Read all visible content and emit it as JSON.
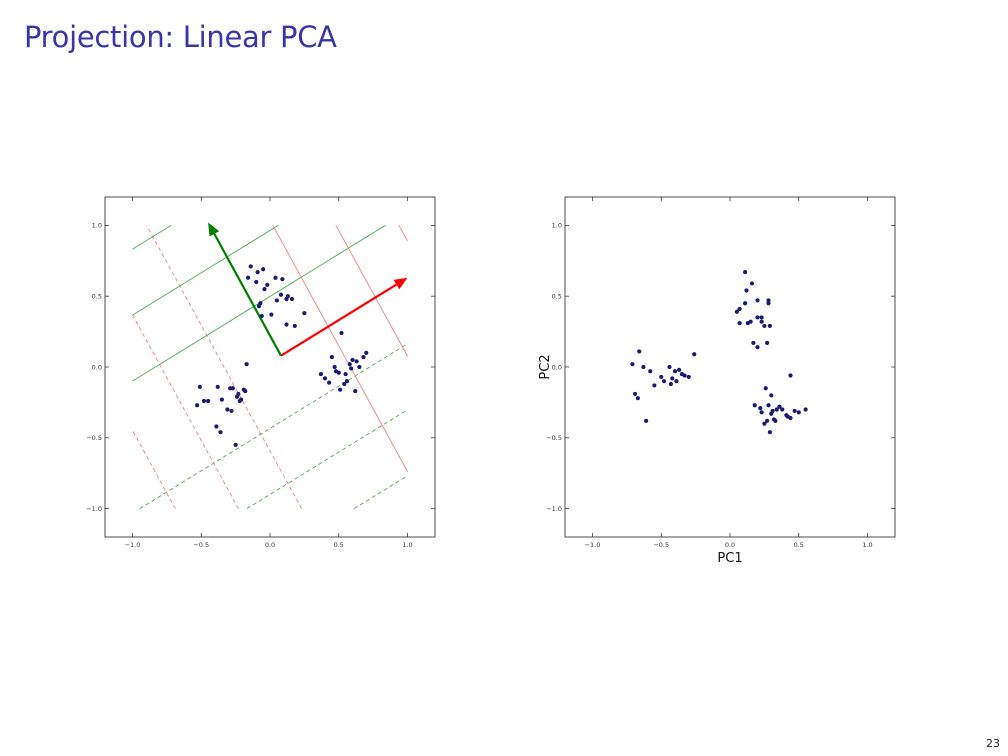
{
  "slide": {
    "title": "Projection: Linear PCA",
    "page_number": "23"
  },
  "chart_data": [
    {
      "type": "scatter",
      "title": "",
      "xlabel": "",
      "ylabel": "",
      "xlim": [
        -1.2,
        1.2
      ],
      "ylim": [
        -1.2,
        1.2
      ],
      "xticks": [
        -1.0,
        -0.5,
        0.0,
        0.5,
        1.0
      ],
      "yticks": [
        -1.0,
        -0.5,
        0.0,
        0.5,
        1.0
      ],
      "xtick_labels": [
        "−1.0",
        "−0.5",
        "0.0",
        "0.5",
        "1.0"
      ],
      "ytick_labels": [
        "−1.0",
        "−0.5",
        "0.0",
        "0.5",
        "1.0"
      ],
      "grid": false,
      "point_color": "#1a1a70",
      "series": [
        {
          "x": [
            -0.05,
            -0.1,
            -0.02,
            -0.07,
            0.04,
            0.09,
            0.12,
            -0.06,
            0.05,
            0.16,
            -0.14,
            -0.08,
            0.12,
            0.08,
            -0.04,
            0.01,
            0.18,
            0.25,
            0.13,
            -0.16,
            -0.09,
            -0.45,
            -0.35,
            -0.27,
            -0.24,
            -0.19,
            -0.31,
            -0.22,
            -0.18,
            -0.39,
            -0.53,
            -0.48,
            -0.28,
            -0.36,
            -0.21,
            -0.25,
            -0.38,
            -0.17,
            -0.51,
            -0.23,
            -0.29,
            0.4,
            0.55,
            0.48,
            0.62,
            0.52,
            0.43,
            0.68,
            0.58,
            0.51,
            0.6,
            0.56,
            0.5,
            0.45,
            0.65,
            0.37,
            0.7,
            0.59,
            0.47,
            0.54,
            0.63
          ],
          "y": [
            0.69,
            0.6,
            0.58,
            0.45,
            0.63,
            0.62,
            0.48,
            0.36,
            0.47,
            0.48,
            0.71,
            0.43,
            0.3,
            0.51,
            0.55,
            0.37,
            0.29,
            0.38,
            0.5,
            0.63,
            0.67,
            -0.24,
            -0.23,
            -0.15,
            -0.21,
            -0.16,
            -0.3,
            -0.24,
            -0.17,
            -0.42,
            -0.27,
            -0.24,
            -0.31,
            -0.46,
            -0.23,
            -0.55,
            -0.14,
            0.02,
            -0.14,
            -0.19,
            -0.15,
            -0.08,
            -0.05,
            -0.03,
            -0.17,
            0.24,
            -0.11,
            0.07,
            0.02,
            -0.16,
            0.05,
            -0.1,
            -0.04,
            0.07,
            0.0,
            -0.05,
            0.1,
            -0.01,
            0.0,
            -0.12,
            0.04
          ]
        }
      ],
      "annotations": {
        "origin": [
          0.08,
          0.08
        ],
        "pc1_vector": {
          "end": [
            1.0,
            0.63
          ],
          "color": "#ff0000"
        },
        "pc2_vector": {
          "end": [
            -0.45,
            1.02
          ],
          "color": "#008000"
        },
        "pc1_contour_color": "#f08080",
        "pc2_contour_color": "#4caf50",
        "contour_levels": [
          -1.6,
          -1.2,
          -0.8,
          -0.4,
          0.4,
          0.8,
          1.2,
          1.6
        ]
      }
    },
    {
      "type": "scatter",
      "title": "",
      "xlabel": "PC1",
      "ylabel": "PC2",
      "xlim": [
        -1.2,
        1.2
      ],
      "ylim": [
        -1.2,
        1.2
      ],
      "xticks": [
        -1.0,
        -0.5,
        0.0,
        0.5,
        1.0
      ],
      "yticks": [
        -1.0,
        -0.5,
        0.0,
        0.5,
        1.0
      ],
      "xtick_labels": [
        "−1.0",
        "−0.5",
        "0.0",
        "0.5",
        "1.0"
      ],
      "ytick_labels": [
        "−1.0",
        "−0.5",
        "0.0",
        "0.5",
        "1.0"
      ],
      "grid": false,
      "point_color": "#1a1a70",
      "series": [
        {
          "x": [
            -0.71,
            -0.66,
            -0.63,
            -0.58,
            -0.55,
            -0.5,
            -0.48,
            -0.44,
            -0.42,
            -0.4,
            -0.37,
            -0.35,
            -0.33,
            -0.3,
            -0.26,
            -0.61,
            -0.67,
            -0.69,
            -0.43,
            -0.39,
            0.11,
            0.16,
            0.12,
            0.2,
            0.05,
            0.07,
            0.11,
            0.2,
            0.15,
            0.23,
            0.28,
            0.28,
            0.17,
            0.2,
            0.29,
            0.25,
            0.07,
            0.13,
            0.23,
            0.27,
            0.18,
            0.22,
            0.23,
            0.25,
            0.28,
            0.3,
            0.32,
            0.31,
            0.34,
            0.36,
            0.38,
            0.41,
            0.44,
            0.47,
            0.5,
            0.55,
            0.26,
            0.27,
            0.29,
            0.44,
            0.3,
            0.33,
            0.42
          ],
          "y": [
            0.02,
            0.11,
            0.0,
            -0.03,
            -0.13,
            -0.07,
            -0.1,
            0.0,
            -0.08,
            -0.03,
            -0.02,
            -0.05,
            -0.06,
            -0.07,
            0.09,
            -0.38,
            -0.22,
            -0.19,
            -0.12,
            -0.1,
            0.67,
            0.59,
            0.54,
            0.47,
            0.39,
            0.41,
            0.45,
            0.35,
            0.32,
            0.32,
            0.47,
            0.45,
            0.17,
            0.14,
            0.29,
            0.29,
            0.31,
            0.31,
            0.35,
            0.17,
            -0.27,
            -0.29,
            -0.32,
            -0.4,
            -0.27,
            -0.33,
            -0.37,
            -0.31,
            -0.3,
            -0.28,
            -0.3,
            -0.34,
            -0.36,
            -0.31,
            -0.32,
            -0.3,
            -0.15,
            -0.38,
            -0.46,
            -0.06,
            -0.2,
            -0.38,
            -0.35
          ]
        }
      ]
    }
  ]
}
